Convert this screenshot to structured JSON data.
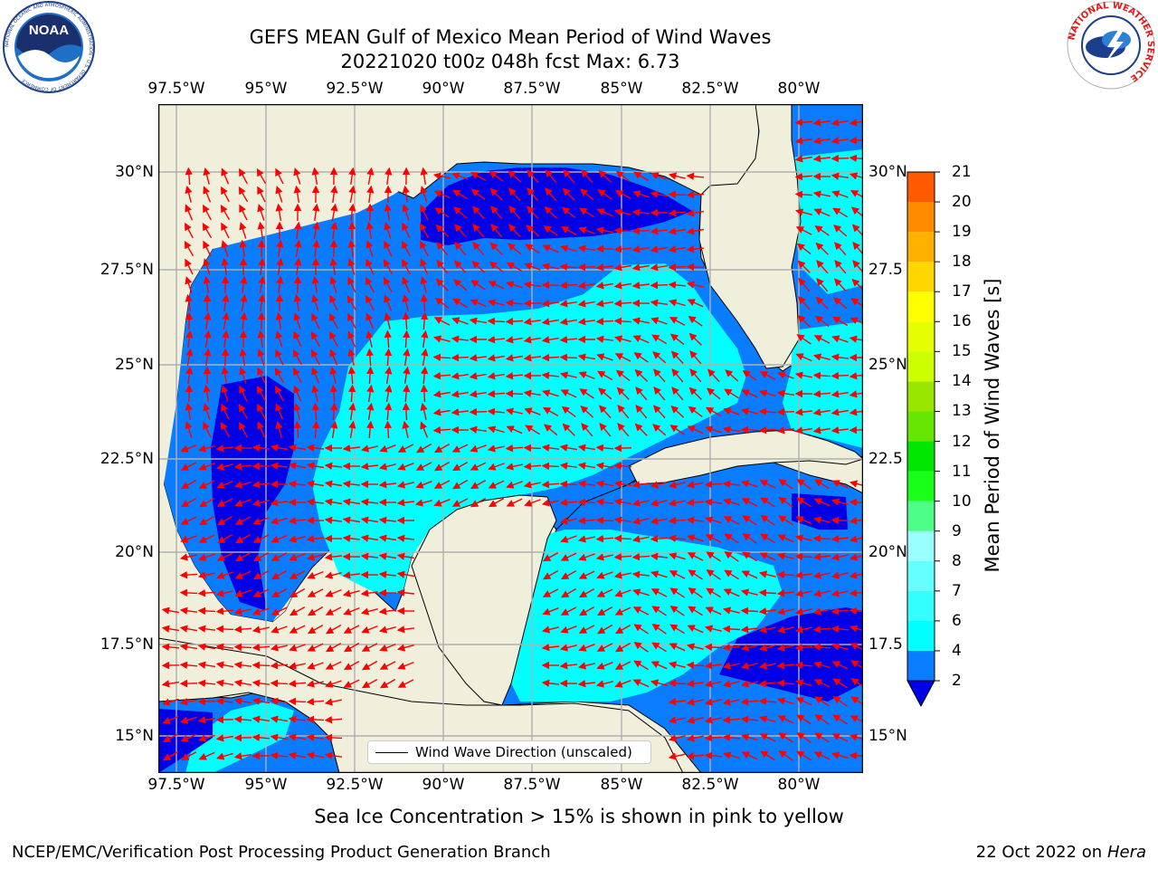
{
  "title": {
    "line1": "GEFS MEAN Gulf of Mexico Mean Period of Wind Waves",
    "line2": "20221020 t00z 048h fcst   Max: 6.73"
  },
  "logos": {
    "noaa_text": "NOAA",
    "noaa_ring": "NATIONAL OCEANIC AND ATMOSPHERIC ADMINISTRATION · U.S. DEPARTMENT OF COMMERCE",
    "nws_ring": "NATIONAL WEATHER SERVICE"
  },
  "map": {
    "lon_labels": [
      "97.5°W",
      "95°W",
      "92.5°W",
      "90°W",
      "87.5°W",
      "85°W",
      "82.5°W",
      "80°W"
    ],
    "lat_labels_left": [
      "30°N",
      "27.5°N",
      "25°N",
      "22.5°N",
      "20°N",
      "17.5°N",
      "15°N"
    ],
    "lat_labels_right": [
      "30°N",
      "27.5",
      "25°N",
      "22.5",
      "20°N",
      "17.5",
      "15°N"
    ],
    "extent": {
      "lon_min": -98.5,
      "lon_max": -78.8,
      "lat_min": 14.0,
      "lat_max": 31.8
    },
    "colors": {
      "land": "#efefdc",
      "water_2_4": "#0a7cff",
      "water_4_6": "#00ffff",
      "water_below_2": "#0000e6",
      "arrows": "#ff0000",
      "grid": "#b0b0b0"
    }
  },
  "legend": {
    "label": "Wind Wave Direction (unscaled)"
  },
  "colorbar": {
    "title": "Mean Period of Wind Waves [s]",
    "ticks": [
      "2",
      "4",
      "6",
      "7",
      "8",
      "9",
      "10",
      "11",
      "12",
      "13",
      "14",
      "15",
      "16",
      "17",
      "18",
      "19",
      "20",
      "21"
    ],
    "colors": [
      "#0a7cff",
      "#00ffff",
      "#33ffff",
      "#66ffff",
      "#99ffff",
      "#4dff88",
      "#1aff1a",
      "#00e600",
      "#66e600",
      "#99e600",
      "#ccff00",
      "#e6ff00",
      "#ffff00",
      "#ffd700",
      "#ffb000",
      "#ff8c00",
      "#ff5a00",
      "#ff2a00",
      "#ff0000"
    ],
    "under_color": "#0000e6"
  },
  "note": "Sea Ice Concentration > 15% is shown in pink to yellow",
  "footer": {
    "left": "NCEP/EMC/Verification Post Processing Product Generation Branch",
    "right_prefix": "22 Oct 2022 on ",
    "right_host": "Hera"
  }
}
